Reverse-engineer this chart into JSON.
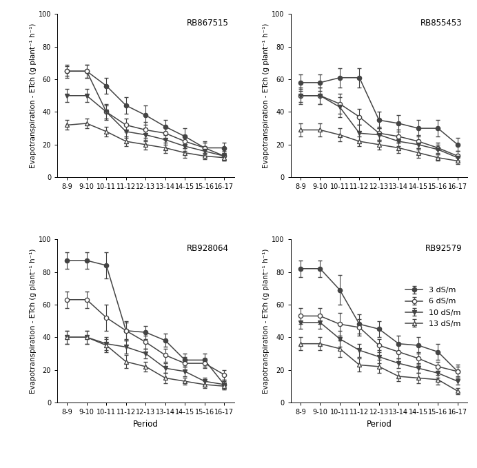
{
  "periods": [
    "8-9",
    "9-10",
    "10-11",
    "11-12",
    "12-13",
    "13-14",
    "14-15",
    "15-16",
    "16-17"
  ],
  "cultivars": [
    "RB867515",
    "RB855453",
    "RB928064",
    "RB92579"
  ],
  "series_labels": [
    "3 dS/m",
    "6 dS/m",
    "10 dS/m",
    "13 dS/m"
  ],
  "RB867515": {
    "s3": [
      65,
      65,
      56,
      44,
      38,
      31,
      25,
      18,
      18
    ],
    "s6": [
      65,
      65,
      40,
      32,
      29,
      27,
      22,
      18,
      13
    ],
    "s10": [
      50,
      50,
      40,
      28,
      26,
      23,
      19,
      16,
      13
    ],
    "s13": [
      32,
      33,
      28,
      22,
      20,
      18,
      15,
      13,
      12
    ],
    "e3": [
      4,
      4,
      5,
      5,
      6,
      4,
      5,
      4,
      3
    ],
    "e6": [
      3,
      4,
      5,
      4,
      5,
      4,
      4,
      3,
      3
    ],
    "e10": [
      4,
      4,
      4,
      4,
      4,
      3,
      3,
      3,
      2
    ],
    "e13": [
      3,
      3,
      3,
      3,
      3,
      3,
      3,
      2,
      2
    ]
  },
  "RB855453": {
    "s3": [
      58,
      58,
      61,
      61,
      35,
      33,
      30,
      30,
      20
    ],
    "s6": [
      50,
      50,
      45,
      37,
      27,
      25,
      22,
      18,
      13
    ],
    "s10": [
      50,
      50,
      43,
      27,
      26,
      22,
      20,
      17,
      12
    ],
    "s13": [
      29,
      29,
      26,
      22,
      20,
      18,
      15,
      12,
      10
    ],
    "e3": [
      5,
      5,
      6,
      6,
      5,
      5,
      5,
      5,
      4
    ],
    "e6": [
      5,
      5,
      6,
      5,
      4,
      4,
      4,
      3,
      3
    ],
    "e10": [
      4,
      5,
      6,
      5,
      4,
      3,
      3,
      3,
      2
    ],
    "e13": [
      4,
      4,
      4,
      3,
      3,
      3,
      3,
      2,
      2
    ]
  },
  "RB928064": {
    "s3": [
      87,
      87,
      84,
      44,
      43,
      38,
      26,
      26,
      11
    ],
    "s6": [
      63,
      63,
      52,
      44,
      37,
      29,
      24,
      24,
      17
    ],
    "s10": [
      40,
      40,
      36,
      34,
      30,
      21,
      19,
      13,
      11
    ],
    "s13": [
      40,
      40,
      35,
      25,
      22,
      15,
      13,
      11,
      10
    ],
    "e3": [
      5,
      5,
      8,
      6,
      4,
      4,
      4,
      4,
      3
    ],
    "e6": [
      5,
      5,
      8,
      5,
      4,
      4,
      4,
      3,
      3
    ],
    "e10": [
      4,
      4,
      4,
      4,
      3,
      3,
      3,
      2,
      2
    ],
    "e13": [
      4,
      4,
      4,
      4,
      3,
      3,
      2,
      2,
      2
    ]
  },
  "RB92579": {
    "s3": [
      82,
      82,
      69,
      48,
      45,
      36,
      35,
      31,
      19
    ],
    "s6": [
      53,
      53,
      48,
      46,
      35,
      31,
      27,
      22,
      19
    ],
    "s10": [
      49,
      49,
      39,
      32,
      28,
      24,
      21,
      18,
      13
    ],
    "s13": [
      36,
      36,
      33,
      23,
      22,
      16,
      15,
      14,
      7
    ],
    "e3": [
      5,
      5,
      9,
      6,
      5,
      5,
      5,
      5,
      4
    ],
    "e6": [
      5,
      5,
      7,
      5,
      4,
      4,
      4,
      3,
      3
    ],
    "e10": [
      4,
      4,
      5,
      4,
      4,
      3,
      3,
      3,
      2
    ],
    "e13": [
      4,
      4,
      5,
      4,
      4,
      3,
      3,
      3,
      2
    ]
  },
  "ylabel": "Evapotranspiration - ETch (g plant⁻¹ h⁻¹)",
  "xlabel": "Period",
  "ylim": [
    0,
    100
  ],
  "yticks": [
    0,
    20,
    40,
    60,
    80,
    100
  ],
  "line_color": "#444444",
  "background_color": "#ffffff"
}
